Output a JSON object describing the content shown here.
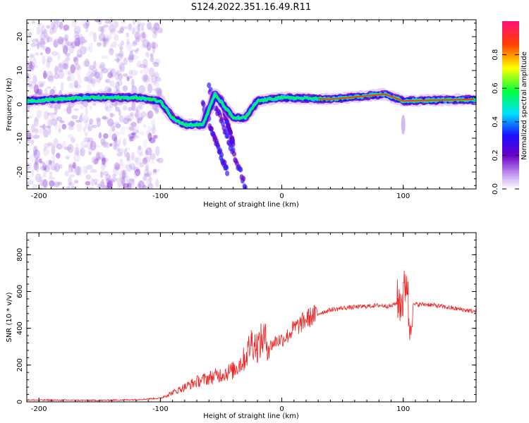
{
  "figure": {
    "title": "S124.2022.351.16.49.R11"
  },
  "chart_data": [
    {
      "type": "heatmap",
      "xlabel": "Height of straight line (km)",
      "ylabel": "Frequency (Hz)",
      "xlim": [
        -210,
        160
      ],
      "ylim": [
        -25,
        25
      ],
      "xticks": [
        -200,
        -100,
        0,
        100
      ],
      "yticks": [
        -20,
        -10,
        0,
        10,
        20
      ],
      "colorbar": {
        "label": "Normalized spectral amplitude",
        "range": [
          0,
          1
        ],
        "ticks": [
          0.0,
          0.2,
          0.4,
          0.6,
          0.8
        ],
        "tick_labels": [
          "0.0",
          "0.2",
          "0.4",
          "0.6",
          "0.8"
        ],
        "colors": [
          "#ffffff",
          "#6a00c8",
          "#1a10ff",
          "#00e0ff",
          "#00ff40",
          "#ffff00",
          "#ff4000",
          "#ff1078"
        ]
      },
      "ridge": [
        {
          "x": -210,
          "y": 1
        },
        {
          "x": -160,
          "y": 2
        },
        {
          "x": -120,
          "y": 2
        },
        {
          "x": -100,
          "y": 1
        },
        {
          "x": -90,
          "y": -4
        },
        {
          "x": -80,
          "y": -6
        },
        {
          "x": -65,
          "y": -6
        },
        {
          "x": -55,
          "y": 3
        },
        {
          "x": -40,
          "y": -4
        },
        {
          "x": -30,
          "y": -4
        },
        {
          "x": -20,
          "y": 1
        },
        {
          "x": 0,
          "y": 2
        },
        {
          "x": 40,
          "y": 1.5
        },
        {
          "x": 85,
          "y": 3
        },
        {
          "x": 100,
          "y": 1
        },
        {
          "x": 160,
          "y": 1.5
        }
      ]
    },
    {
      "type": "line",
      "xlabel": "Height of straight line (km)",
      "ylabel": "SNR (10 * v/v)",
      "xlim": [
        -210,
        160
      ],
      "ylim": [
        0,
        920
      ],
      "xticks": [
        -200,
        -100,
        0,
        100
      ],
      "yticks": [
        0,
        200,
        400,
        600,
        800
      ],
      "color": "#ee2222",
      "x": [
        -210,
        -150,
        -120,
        -100,
        -90,
        -80,
        -70,
        -60,
        -50,
        -40,
        -30,
        -25,
        -20,
        -15,
        -10,
        -5,
        0,
        5,
        10,
        15,
        20,
        30,
        40,
        50,
        60,
        70,
        80,
        90,
        95,
        100,
        103,
        105,
        107,
        110,
        120,
        130,
        140,
        150,
        160
      ],
      "values": [
        10,
        8,
        12,
        20,
        50,
        80,
        110,
        130,
        150,
        170,
        240,
        330,
        300,
        350,
        300,
        330,
        340,
        360,
        400,
        420,
        450,
        480,
        500,
        510,
        515,
        520,
        525,
        520,
        540,
        560,
        700,
        380,
        520,
        530,
        530,
        520,
        510,
        500,
        490
      ]
    }
  ]
}
